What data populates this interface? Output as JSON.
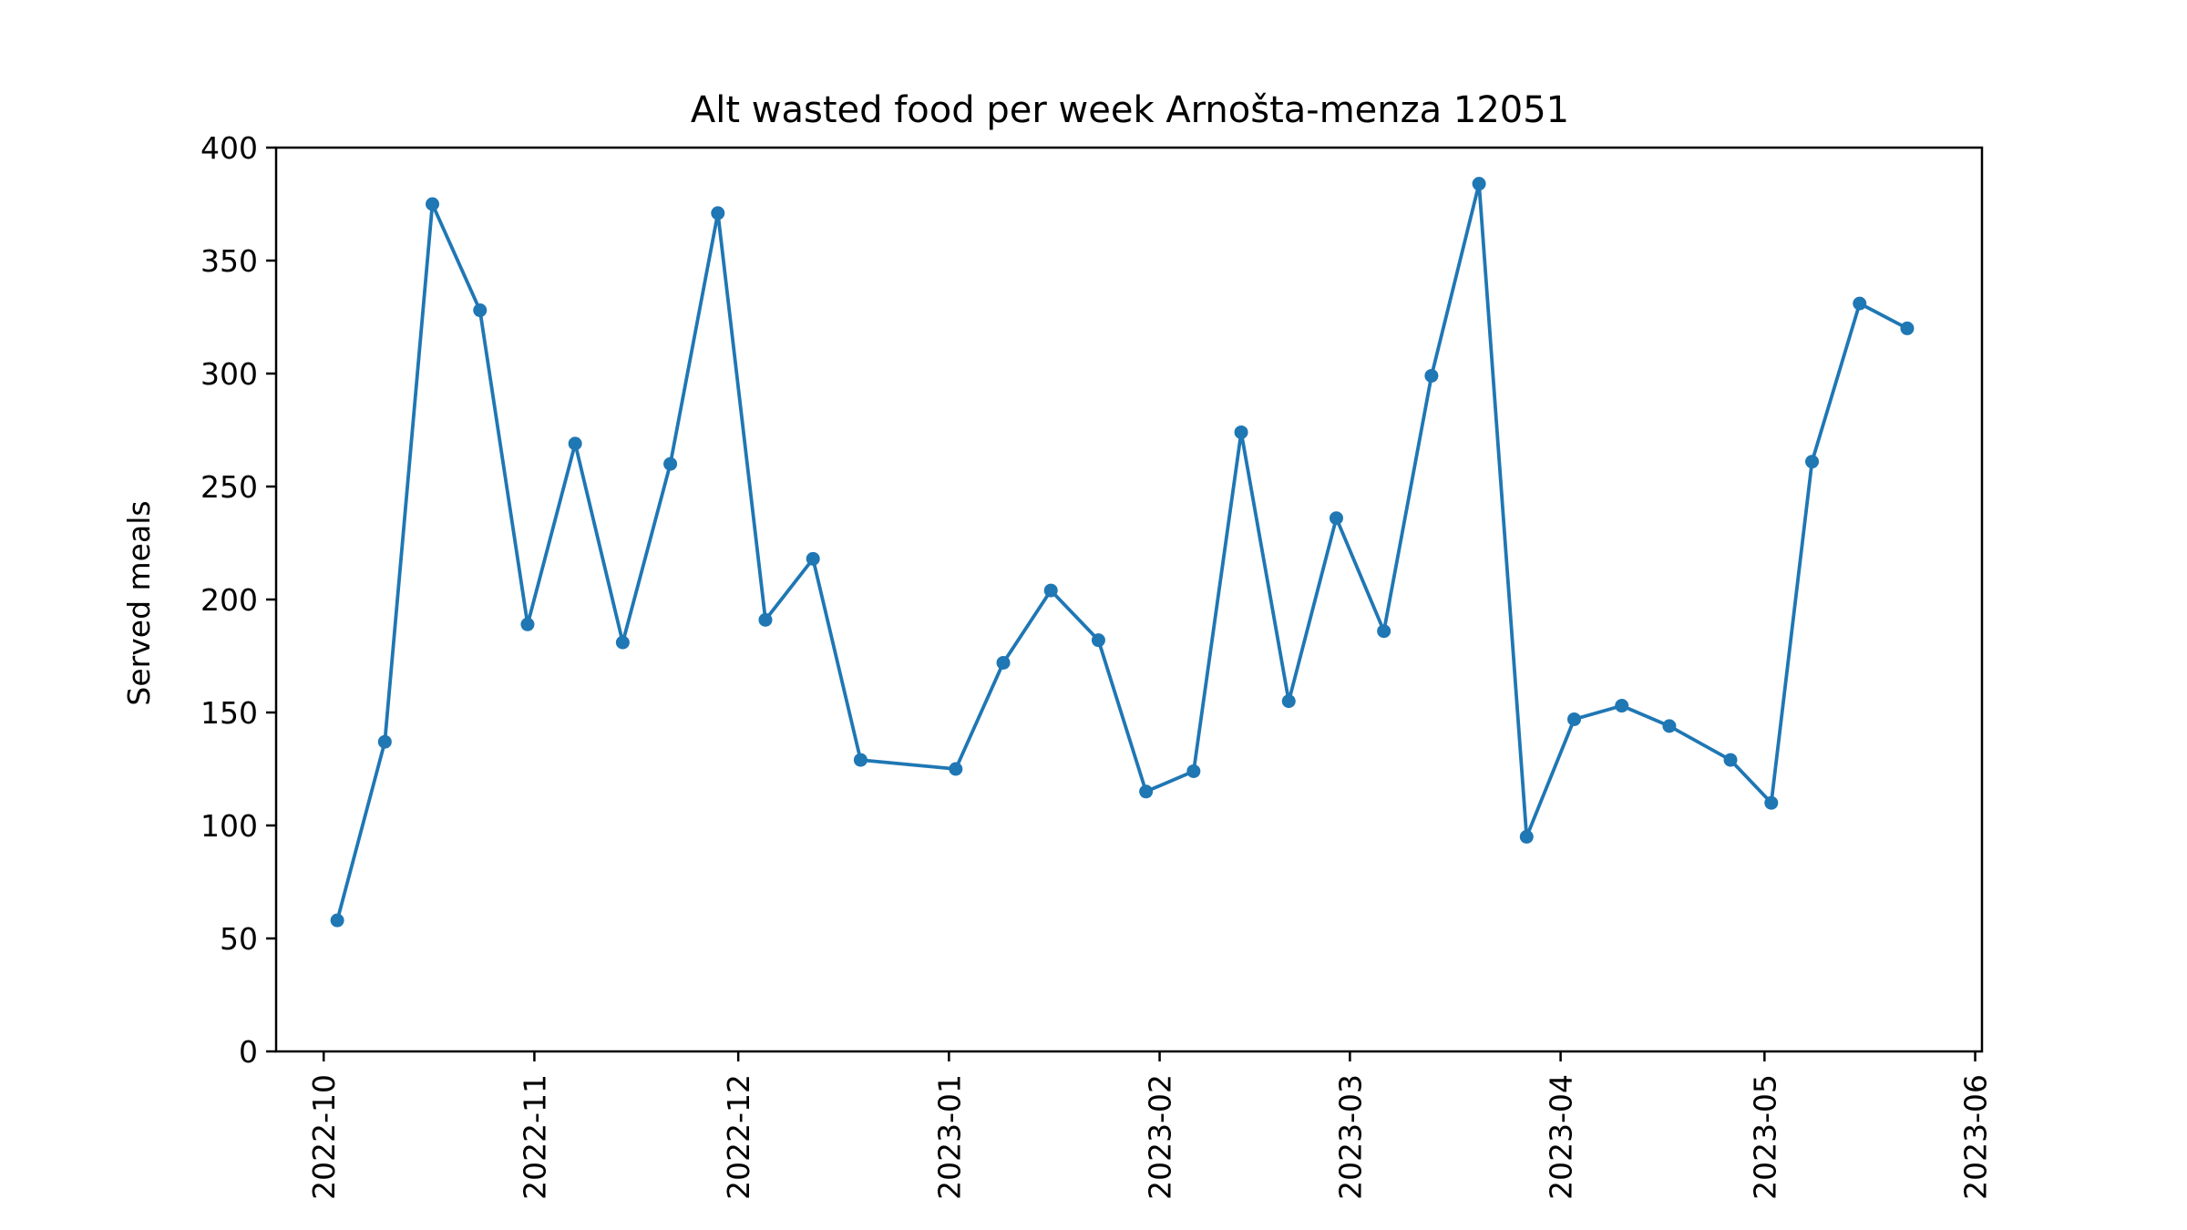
{
  "chart_data": {
    "type": "line",
    "title": "Alt wasted food per week Arnošta-menza 12051",
    "xlabel": "",
    "ylabel": "Served meals",
    "ylim": [
      0,
      400
    ],
    "xlim": [
      "2022-09-24",
      "2023-06-02"
    ],
    "grid": false,
    "color": "#1f77b4",
    "yticks": [
      0,
      50,
      100,
      150,
      200,
      250,
      300,
      350,
      400
    ],
    "xticks": [
      "2022-10-01",
      "2022-11-01",
      "2022-12-01",
      "2023-01-01",
      "2023-02-01",
      "2023-03-01",
      "2023-04-01",
      "2023-05-01",
      "2023-06-01"
    ],
    "xtick_labels": [
      "2022-10",
      "2022-11",
      "2022-12",
      "2023-01",
      "2023-02",
      "2023-03",
      "2023-04",
      "2023-05",
      "2023-06"
    ],
    "series": [
      {
        "name": "",
        "x": [
          "2022-10-03",
          "2022-10-10",
          "2022-10-17",
          "2022-10-24",
          "2022-10-31",
          "2022-11-07",
          "2022-11-14",
          "2022-11-21",
          "2022-11-28",
          "2022-12-05",
          "2022-12-12",
          "2022-12-19",
          "2023-01-02",
          "2023-01-09",
          "2023-01-16",
          "2023-01-23",
          "2023-01-30",
          "2023-02-06",
          "2023-02-13",
          "2023-02-20",
          "2023-02-27",
          "2023-03-06",
          "2023-03-13",
          "2023-03-20",
          "2023-03-27",
          "2023-04-03",
          "2023-04-10",
          "2023-04-17",
          "2023-04-26",
          "2023-05-02",
          "2023-05-08",
          "2023-05-15",
          "2023-05-22"
        ],
        "y": [
          58,
          137,
          375,
          328,
          189,
          269,
          181,
          260,
          371,
          191,
          218,
          129,
          125,
          172,
          204,
          182,
          115,
          124,
          274,
          155,
          236,
          186,
          299,
          384,
          95,
          147,
          153,
          144,
          129,
          110,
          261,
          331,
          320
        ]
      }
    ]
  }
}
